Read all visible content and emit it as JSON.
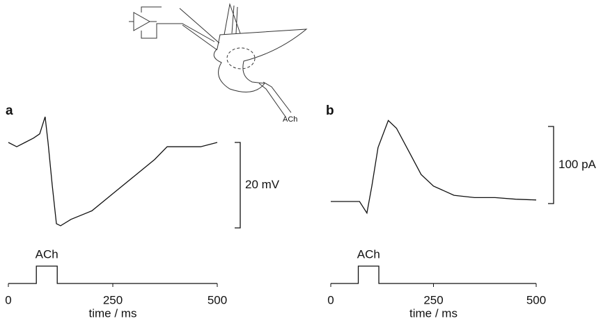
{
  "diagram": {
    "pipette_label": "ACh"
  },
  "chart_data": [
    {
      "type": "line",
      "panel": "a",
      "xlabel": "time / ms",
      "xlim": [
        0,
        500
      ],
      "xticks": [
        0,
        250,
        500
      ],
      "x": [
        0,
        20,
        40,
        60,
        75,
        88,
        95,
        105,
        115,
        125,
        150,
        200,
        250,
        300,
        350,
        380,
        420,
        460,
        500
      ],
      "series": [
        {
          "color": "#111111",
          "values": [
            0,
            -1,
            0,
            1,
            2,
            6,
            0,
            -10,
            -19,
            -19.5,
            -18,
            -16,
            -12,
            -8,
            -4,
            -1,
            -1,
            -1,
            0
          ]
        }
      ],
      "scalebar": {
        "value": 20,
        "label": "20 mV"
      },
      "stimulus": {
        "label": "ACh",
        "on": 67,
        "off": 117
      }
    },
    {
      "type": "line",
      "panel": "b",
      "xlabel": "time / ms",
      "xlim": [
        0,
        500
      ],
      "xticks": [
        0,
        250,
        500
      ],
      "x": [
        0,
        40,
        70,
        88,
        100,
        115,
        140,
        160,
        190,
        220,
        250,
        300,
        350,
        400,
        450,
        500
      ],
      "series": [
        {
          "color": "#111111",
          "values": [
            0,
            0,
            0,
            -15,
            20,
            70,
            105,
            95,
            65,
            35,
            20,
            8,
            5,
            5,
            3,
            2
          ]
        }
      ],
      "scalebar": {
        "value": 100,
        "label": "100 pA"
      },
      "stimulus": {
        "label": "ACh",
        "on": 67,
        "off": 117
      }
    }
  ]
}
